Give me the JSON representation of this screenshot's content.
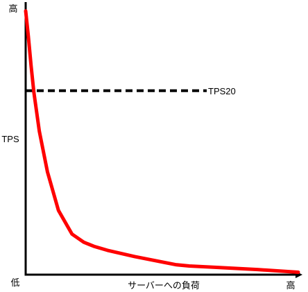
{
  "chart_data": {
    "type": "line",
    "ylabel": "TPS",
    "xlabel": "サーバーへの負荷",
    "y_axis_high_label": "高",
    "origin_label": "低",
    "x_axis_high_label": "高",
    "x": [
      0,
      1,
      2,
      3,
      5,
      8,
      12,
      17,
      21.3,
      25,
      30,
      40,
      55,
      60,
      70,
      85,
      100
    ],
    "series": [
      {
        "color": "#ff0000",
        "values": [
          97.5,
          88,
          77,
          67.5,
          53,
          38,
          23.8,
          15,
          12,
          10.5,
          9,
          6.7,
          3.7,
          3.2,
          2.7,
          1.9,
          0.9
        ]
      }
    ],
    "reference_line": {
      "label": "TPS20",
      "y": 68,
      "style": "dashed",
      "color": "#000000"
    },
    "xlim": [
      0,
      100
    ],
    "ylim": [
      0,
      100
    ],
    "grid": false,
    "axis_color": "#000000"
  }
}
